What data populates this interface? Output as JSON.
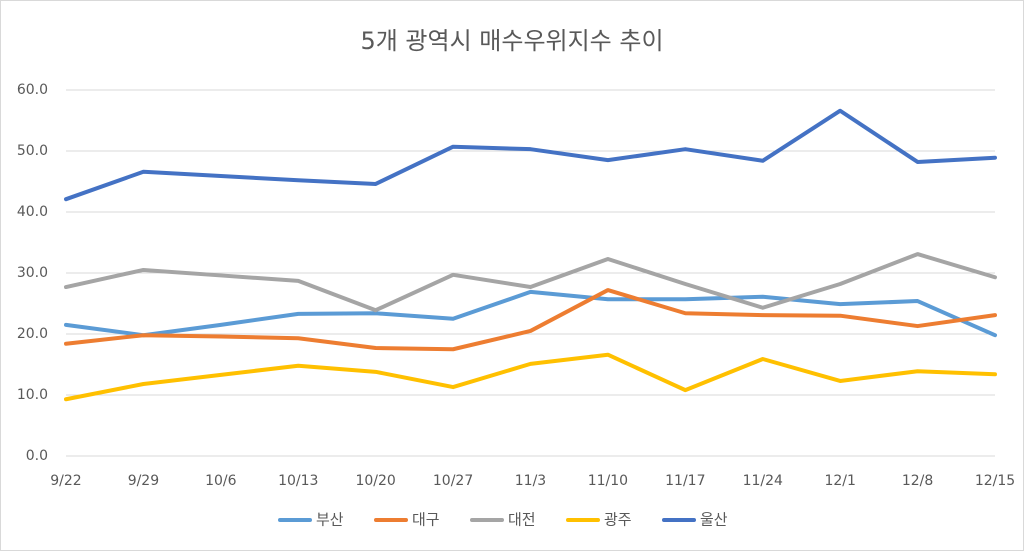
{
  "chart_data": {
    "type": "line",
    "title": "5개 광역시 매수우위지수 추이",
    "categories": [
      "9/22",
      "9/29",
      "10/6",
      "10/13",
      "10/20",
      "10/27",
      "11/3",
      "11/10",
      "11/17",
      "11/24",
      "12/1",
      "12/8",
      "12/15"
    ],
    "series": [
      {
        "name": "부산",
        "color": "#5b9bd5",
        "values": [
          21.5,
          19.8,
          21.5,
          23.3,
          23.4,
          22.5,
          26.9,
          25.7,
          25.7,
          26.1,
          24.9,
          25.4,
          19.8
        ]
      },
      {
        "name": "대구",
        "color": "#ed7d31",
        "values": [
          18.4,
          19.8,
          19.6,
          19.3,
          17.7,
          17.5,
          20.5,
          27.2,
          23.4,
          23.1,
          23.0,
          21.3,
          23.1
        ]
      },
      {
        "name": "대전",
        "color": "#a5a5a5",
        "values": [
          27.7,
          30.5,
          29.6,
          28.7,
          23.9,
          29.7,
          27.7,
          32.3,
          28.2,
          24.3,
          28.2,
          33.1,
          29.3
        ]
      },
      {
        "name": "광주",
        "color": "#ffc000",
        "values": [
          9.3,
          11.8,
          13.3,
          14.8,
          13.8,
          11.3,
          15.1,
          16.6,
          10.8,
          15.9,
          12.3,
          13.9,
          13.4
        ]
      },
      {
        "name": "울산",
        "color": "#4472c4",
        "values": [
          42.1,
          46.6,
          45.9,
          45.2,
          44.6,
          50.7,
          50.3,
          48.5,
          50.3,
          48.4,
          56.6,
          48.2,
          48.9
        ]
      }
    ],
    "ylim": [
      0,
      60
    ],
    "yticks": [
      {
        "value": 0,
        "label": "0.0"
      },
      {
        "value": 10,
        "label": "10.0"
      },
      {
        "value": 20,
        "label": "20.0"
      },
      {
        "value": 30,
        "label": "30.0"
      },
      {
        "value": 40,
        "label": "40.0"
      },
      {
        "value": 50,
        "label": "50.0"
      },
      {
        "value": 60,
        "label": "60.0"
      }
    ],
    "grid": true,
    "legend": "bottom"
  }
}
